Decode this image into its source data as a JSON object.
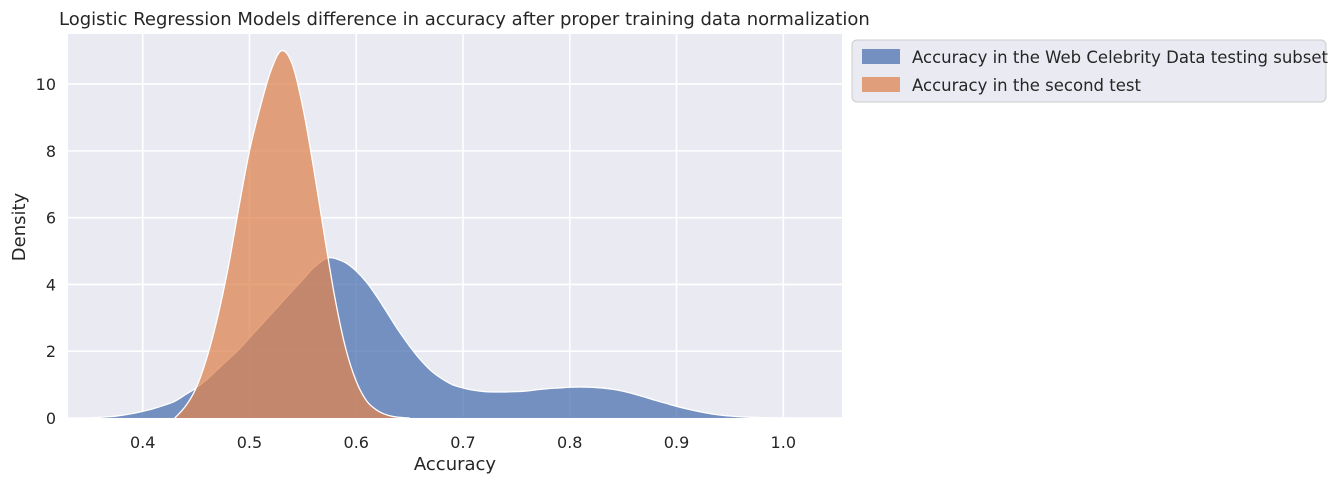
{
  "chart_data": {
    "type": "area",
    "title": "Logistic Regression Models difference in accuracy after proper training data normalization",
    "xlabel": "Accuracy",
    "ylabel": "Density",
    "xlim": [
      0.33,
      1.055
    ],
    "ylim": [
      0,
      11.5
    ],
    "xticks": [
      0.4,
      0.5,
      0.6,
      0.7,
      0.8,
      0.9,
      1.0
    ],
    "xtick_labels": [
      "0.4",
      "0.5",
      "0.6",
      "0.7",
      "0.8",
      "0.9",
      "1.0"
    ],
    "yticks": [
      0,
      2,
      4,
      6,
      8,
      10
    ],
    "ytick_labels": [
      "0",
      "2",
      "4",
      "6",
      "8",
      "10"
    ],
    "grid": true,
    "legend_position": "outside-top-right",
    "series": [
      {
        "name": "Accuracy in the Web Celebrity Data testing subset",
        "color": "#4c72b0",
        "x": [
          0.35,
          0.36,
          0.37,
          0.38,
          0.39,
          0.4,
          0.41,
          0.42,
          0.43,
          0.44,
          0.45,
          0.46,
          0.47,
          0.48,
          0.49,
          0.5,
          0.51,
          0.52,
          0.53,
          0.54,
          0.55,
          0.56,
          0.57,
          0.575,
          0.58,
          0.59,
          0.6,
          0.61,
          0.62,
          0.63,
          0.64,
          0.65,
          0.66,
          0.67,
          0.68,
          0.69,
          0.7,
          0.71,
          0.72,
          0.73,
          0.74,
          0.75,
          0.76,
          0.77,
          0.78,
          0.79,
          0.8,
          0.81,
          0.82,
          0.83,
          0.84,
          0.85,
          0.86,
          0.87,
          0.88,
          0.89,
          0.9,
          0.91,
          0.92,
          0.93,
          0.94,
          0.95,
          0.96,
          0.97,
          0.98,
          0.99,
          1.0,
          1.01,
          1.02
        ],
        "values": [
          0.0,
          0.02,
          0.04,
          0.08,
          0.13,
          0.2,
          0.28,
          0.38,
          0.5,
          0.7,
          0.9,
          1.15,
          1.45,
          1.75,
          2.05,
          2.4,
          2.75,
          3.1,
          3.45,
          3.8,
          4.15,
          4.5,
          4.75,
          4.8,
          4.78,
          4.65,
          4.4,
          4.05,
          3.6,
          3.1,
          2.6,
          2.15,
          1.75,
          1.42,
          1.18,
          1.0,
          0.9,
          0.83,
          0.79,
          0.78,
          0.78,
          0.79,
          0.81,
          0.85,
          0.88,
          0.9,
          0.92,
          0.93,
          0.92,
          0.9,
          0.86,
          0.8,
          0.72,
          0.63,
          0.53,
          0.44,
          0.35,
          0.27,
          0.2,
          0.14,
          0.09,
          0.06,
          0.035,
          0.02,
          0.01,
          0.005,
          0.002,
          0.001,
          0.0
        ]
      },
      {
        "name": "Accuracy in the second test",
        "color": "#dd8452",
        "x": [
          0.43,
          0.44,
          0.45,
          0.46,
          0.47,
          0.48,
          0.49,
          0.5,
          0.51,
          0.52,
          0.53,
          0.54,
          0.55,
          0.56,
          0.57,
          0.58,
          0.59,
          0.6,
          0.61,
          0.62,
          0.63,
          0.64,
          0.65
        ],
        "values": [
          0.0,
          0.35,
          0.9,
          1.8,
          3.0,
          4.5,
          6.3,
          8.0,
          9.3,
          10.4,
          11.0,
          10.6,
          9.3,
          7.5,
          5.5,
          3.6,
          2.1,
          1.1,
          0.5,
          0.22,
          0.08,
          0.02,
          0.0
        ]
      }
    ]
  }
}
